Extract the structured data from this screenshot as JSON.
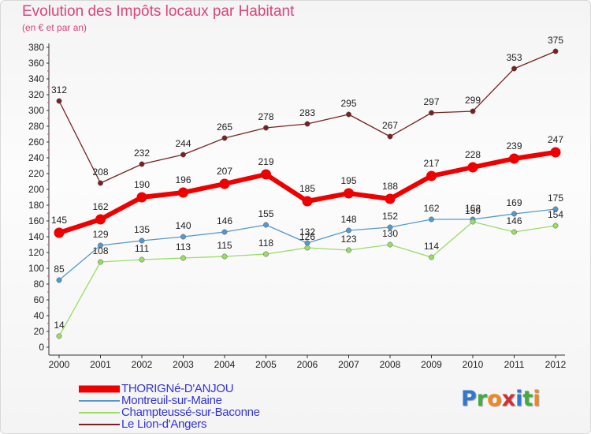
{
  "header": {
    "title": "Evolution des Impôts locaux par Habitant",
    "subtitle": "(en € et par an)"
  },
  "logo": {
    "text": "Proxiti",
    "letters": [
      {
        "ch": "P",
        "color": "#3377cc"
      },
      {
        "ch": "r",
        "color": "#44aa44"
      },
      {
        "ch": "o",
        "color": "#ee8822"
      },
      {
        "ch": "x",
        "color": "#cc3333"
      },
      {
        "ch": "i",
        "color": "#3377cc"
      },
      {
        "ch": "t",
        "color": "#44aa44"
      },
      {
        "ch": "i",
        "color": "#ee8822"
      }
    ]
  },
  "chart_data": {
    "type": "line",
    "categories": [
      "2000",
      "2001",
      "2002",
      "2003",
      "2004",
      "2005",
      "2006",
      "2007",
      "2008",
      "2009",
      "2010",
      "2011",
      "2012"
    ],
    "ylim": [
      0,
      380
    ],
    "ytick_step": 20,
    "grid": false,
    "legend_position": "bottom-left",
    "series": [
      {
        "name": "Le Lion-d'Angers",
        "color": "#772222",
        "values": [
          312,
          208,
          232,
          244,
          265,
          278,
          283,
          295,
          267,
          297,
          299,
          353,
          375
        ]
      },
      {
        "name": "THORIGNé-D'ANJOU",
        "color": "#ee0000",
        "values": [
          145,
          162,
          190,
          196,
          207,
          219,
          185,
          195,
          188,
          217,
          228,
          239,
          247
        ]
      },
      {
        "name": "Montreuil-sur-Maine",
        "color": "#5599cc",
        "values": [
          85,
          129,
          135,
          140,
          146,
          155,
          132,
          148,
          152,
          162,
          162,
          169,
          175
        ]
      },
      {
        "name": "Champteussé-sur-Baconne",
        "color": "#99dd66",
        "values": [
          14,
          108,
          111,
          113,
          115,
          118,
          126,
          123,
          130,
          114,
          159,
          146,
          154
        ]
      }
    ],
    "legend": [
      {
        "name": "THORIGNé-D'ANJOU",
        "color": "#ee0000",
        "width": 9
      },
      {
        "name": "Montreuil-sur-Maine",
        "color": "#5599cc",
        "width": 2
      },
      {
        "name": "Champteussé-sur-Baconne",
        "color": "#99dd66",
        "width": 2
      },
      {
        "name": "Le Lion-d'Angers",
        "color": "#772222",
        "width": 2
      }
    ]
  }
}
